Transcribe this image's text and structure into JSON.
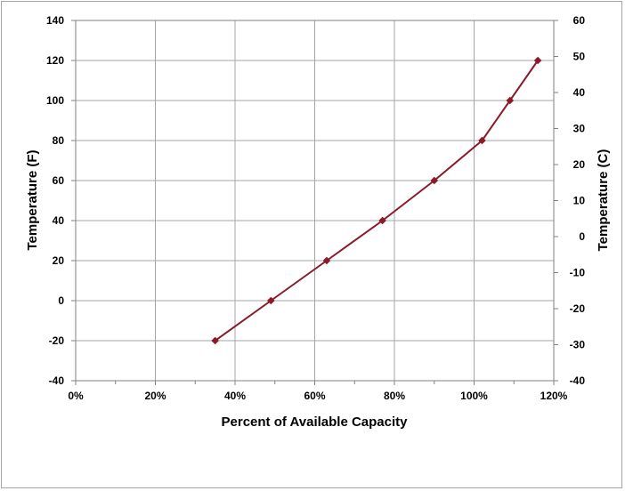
{
  "chart_data": {
    "type": "line",
    "xlabel": "Percent of Available Capacity",
    "ylabel": "Temperature (F)",
    "y2label": "Temperature  (C)",
    "xlim": [
      0,
      120
    ],
    "ylim": [
      -40,
      140
    ],
    "y2lim": [
      -40,
      60
    ],
    "x_ticks": [
      "0%",
      "20%",
      "40%",
      "60%",
      "80%",
      "100%",
      "120%"
    ],
    "y_ticks": [
      "-40",
      "-20",
      "0",
      "20",
      "40",
      "60",
      "80",
      "100",
      "120",
      "140"
    ],
    "y2_ticks": [
      "-40",
      "-30",
      "-20",
      "-10",
      "0",
      "10",
      "20",
      "30",
      "40",
      "50",
      "60"
    ],
    "grid": true,
    "series": [
      {
        "color": "#8b1a2b",
        "x": [
          35,
          49,
          63,
          77,
          90,
          102,
          109,
          116
        ],
        "y": [
          -20,
          0,
          20,
          40,
          60,
          80,
          100,
          120
        ]
      }
    ]
  }
}
